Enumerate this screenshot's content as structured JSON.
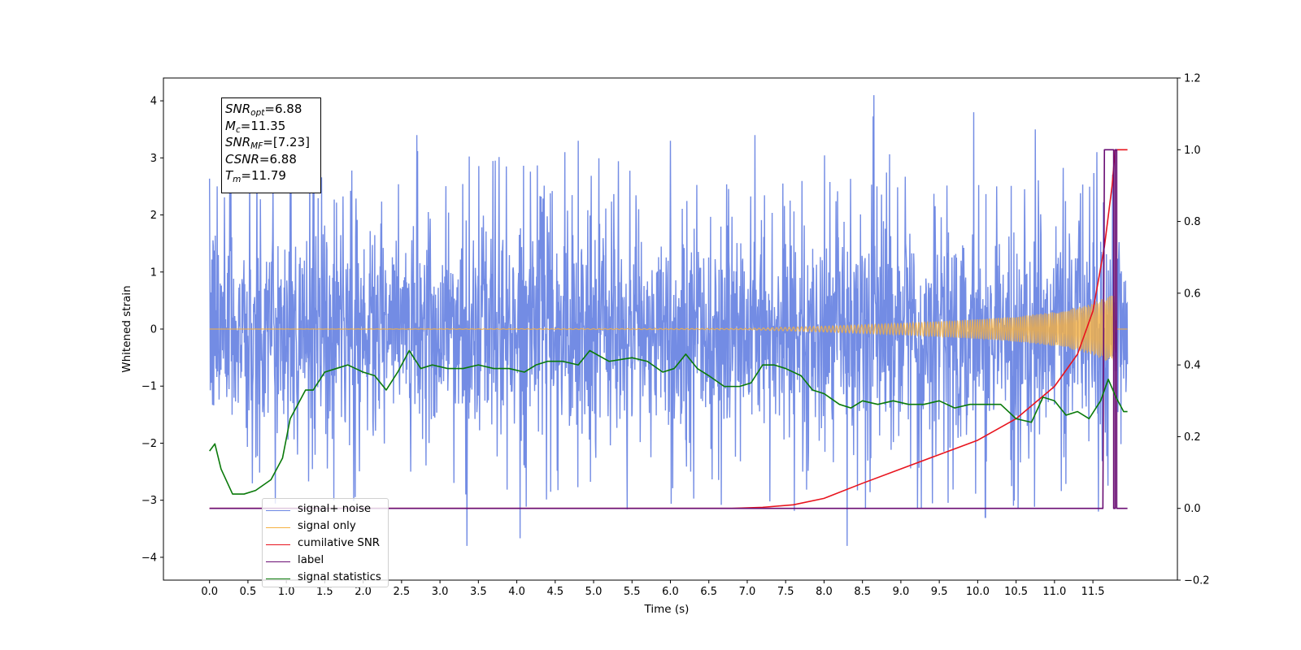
{
  "chart_data": {
    "type": "line",
    "xlabel": "Time (s)",
    "ylabel": "Whitened strain",
    "xlim": [
      -0.6,
      12.6
    ],
    "ylim": [
      -4.4,
      4.4
    ],
    "y2lim": [
      -0.2,
      1.2
    ],
    "xticks": [
      "0.0",
      "0.5",
      "1.0",
      "1.5",
      "2.0",
      "2.5",
      "3.0",
      "3.5",
      "4.0",
      "4.5",
      "5.0",
      "5.5",
      "6.0",
      "6.5",
      "7.0",
      "7.5",
      "8.0",
      "8.5",
      "9.0",
      "9.5",
      "10.0",
      "10.5",
      "11.0",
      "11.5"
    ],
    "yticks": [
      "4",
      "3",
      "2",
      "1",
      "0",
      "−1",
      "−2",
      "−3",
      "−4"
    ],
    "y2ticks": [
      "1.2",
      "1.0",
      "0.8",
      "0.6",
      "0.4",
      "0.2",
      "0.0",
      "−0.2"
    ],
    "grid": false,
    "legend_position": "lower-left",
    "stats_box": {
      "snr_opt": "6.88",
      "mc": "11.35",
      "snr_mf": "[7.23]",
      "csnr": "6.88",
      "tm": "11.79"
    },
    "series": [
      {
        "name": "signal+ noise",
        "color": "#6b86e3",
        "axis": "left",
        "x_range": [
          0.0,
          11.95
        ],
        "envelope_upper": 2.2,
        "envelope_lower": -2.2,
        "peak_values": [
          {
            "x": 0.1,
            "y": 2.5
          },
          {
            "x": 1.05,
            "y": 2.8
          },
          {
            "x": 2.7,
            "y": 3.4
          },
          {
            "x": 3.35,
            "y": -3.8
          },
          {
            "x": 4.8,
            "y": 3.3
          },
          {
            "x": 6.0,
            "y": 3.3
          },
          {
            "x": 7.1,
            "y": 3.4
          },
          {
            "x": 8.3,
            "y": -3.8
          },
          {
            "x": 8.65,
            "y": 4.1
          },
          {
            "x": 9.95,
            "y": 3.8
          },
          {
            "x": 10.1,
            "y": -3.3
          },
          {
            "x": 10.75,
            "y": 3.5
          },
          {
            "x": 11.55,
            "y": 3.1
          }
        ]
      },
      {
        "name": "signal only",
        "color": "#f5b041",
        "axis": "left",
        "x": [
          0.0,
          7.0,
          8.0,
          9.0,
          10.0,
          10.5,
          11.0,
          11.3,
          11.5,
          11.65,
          11.78,
          11.8,
          11.95
        ],
        "amplitude": [
          0.0,
          0.01,
          0.05,
          0.1,
          0.17,
          0.22,
          0.3,
          0.38,
          0.45,
          0.55,
          0.6,
          0.0,
          0.0
        ]
      },
      {
        "name": "cumilative SNR",
        "color": "#e8141e",
        "axis": "right",
        "x": [
          0.0,
          6.8,
          7.2,
          7.6,
          8.0,
          8.5,
          9.0,
          9.5,
          10.0,
          10.5,
          11.0,
          11.3,
          11.5,
          11.65,
          11.75,
          11.79,
          11.95
        ],
        "y": [
          0.0,
          0.0,
          0.003,
          0.01,
          0.028,
          0.07,
          0.11,
          0.15,
          0.19,
          0.25,
          0.34,
          0.43,
          0.55,
          0.73,
          0.9,
          1.0,
          1.0
        ]
      },
      {
        "name": "label",
        "color": "#6a0d73",
        "axis": "right",
        "x": [
          0.0,
          11.63,
          11.65,
          11.77,
          11.77,
          11.79,
          11.79,
          11.81,
          11.81,
          11.95
        ],
        "y": [
          0.0,
          0.0,
          1.0,
          1.0,
          0.0,
          0.0,
          1.0,
          1.0,
          0.0,
          0.0
        ]
      },
      {
        "name": "signal statistics",
        "color": "#0a7a0a",
        "axis": "right",
        "x": [
          0.0,
          0.07,
          0.15,
          0.3,
          0.45,
          0.6,
          0.8,
          0.95,
          1.05,
          1.15,
          1.25,
          1.35,
          1.5,
          1.65,
          1.8,
          1.9,
          2.0,
          2.15,
          2.3,
          2.45,
          2.6,
          2.75,
          2.9,
          3.1,
          3.3,
          3.5,
          3.7,
          3.9,
          4.1,
          4.25,
          4.4,
          4.6,
          4.8,
          4.95,
          5.2,
          5.5,
          5.7,
          5.9,
          6.05,
          6.2,
          6.35,
          6.5,
          6.7,
          6.9,
          7.05,
          7.2,
          7.35,
          7.5,
          7.7,
          7.85,
          8.0,
          8.2,
          8.35,
          8.5,
          8.7,
          8.9,
          9.1,
          9.3,
          9.5,
          9.7,
          9.9,
          10.1,
          10.3,
          10.5,
          10.7,
          10.85,
          11.0,
          11.15,
          11.3,
          11.45,
          11.6,
          11.7,
          11.8,
          11.9,
          11.95
        ],
        "y": [
          0.16,
          0.18,
          0.11,
          0.04,
          0.04,
          0.05,
          0.08,
          0.14,
          0.25,
          0.29,
          0.33,
          0.33,
          0.38,
          0.39,
          0.4,
          0.39,
          0.38,
          0.37,
          0.33,
          0.38,
          0.44,
          0.39,
          0.4,
          0.39,
          0.39,
          0.4,
          0.39,
          0.39,
          0.38,
          0.4,
          0.41,
          0.41,
          0.4,
          0.44,
          0.41,
          0.42,
          0.41,
          0.38,
          0.39,
          0.43,
          0.39,
          0.37,
          0.34,
          0.34,
          0.35,
          0.4,
          0.4,
          0.39,
          0.37,
          0.33,
          0.32,
          0.29,
          0.28,
          0.3,
          0.29,
          0.3,
          0.29,
          0.29,
          0.3,
          0.28,
          0.29,
          0.29,
          0.29,
          0.25,
          0.24,
          0.31,
          0.3,
          0.26,
          0.27,
          0.25,
          0.3,
          0.36,
          0.31,
          0.27,
          0.27
        ]
      }
    ],
    "legend": [
      {
        "name": "signal+ noise",
        "color": "#6b86e3"
      },
      {
        "name": "signal only",
        "color": "#f5b041"
      },
      {
        "name": "cumilative SNR",
        "color": "#e8141e"
      },
      {
        "name": "label",
        "color": "#6a0d73"
      },
      {
        "name": "signal statistics",
        "color": "#0a7a0a"
      }
    ]
  }
}
